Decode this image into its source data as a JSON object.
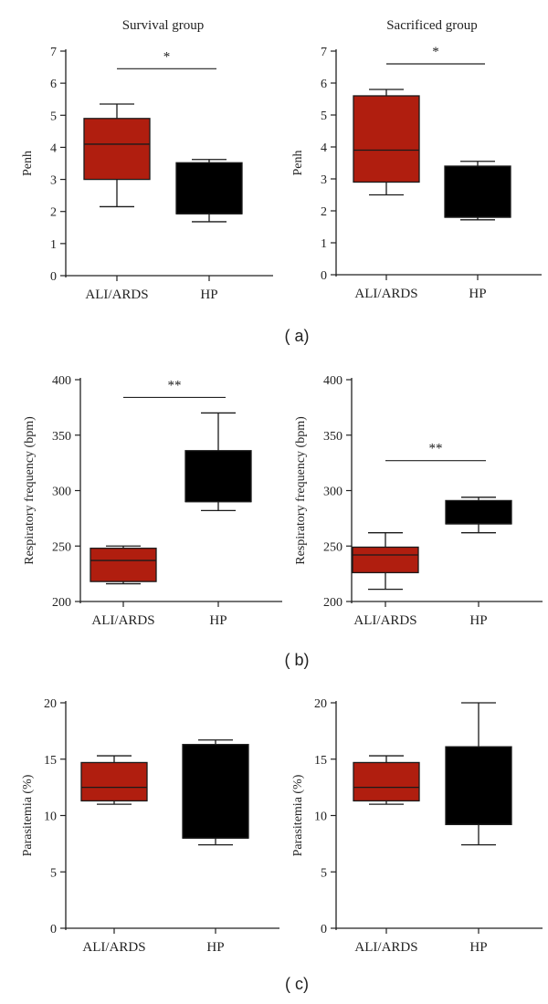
{
  "panel_labels": [
    "( a)",
    "( b)",
    "( c)"
  ],
  "chart_data": [
    {
      "type": "box",
      "title": "Survival group",
      "ylabel": "Penh",
      "ylim": [
        0,
        7
      ],
      "yticks": [
        "0",
        "1",
        "2",
        "3",
        "4",
        "5",
        "6",
        "7"
      ],
      "categories": [
        "ALI/ARDS",
        "HP"
      ],
      "boxes": [
        {
          "category": "ALI/ARDS",
          "min": 2.15,
          "q1": 3.0,
          "median": 4.1,
          "q3": 4.9,
          "max": 5.35,
          "color": "#b01e0f"
        },
        {
          "category": "HP",
          "min": 1.68,
          "q1": 1.93,
          "median": 1.93,
          "q3": 3.52,
          "max": 3.62,
          "color": "#000000"
        }
      ],
      "significance": {
        "label": "*",
        "y": 6.45
      }
    },
    {
      "type": "box",
      "title": "Sacrificed group",
      "ylabel": "Penh",
      "ylim": [
        0,
        7
      ],
      "yticks": [
        "0",
        "1",
        "2",
        "3",
        "4",
        "5",
        "6",
        "7"
      ],
      "categories": [
        "ALI/ARDS",
        "HP"
      ],
      "boxes": [
        {
          "category": "ALI/ARDS",
          "min": 2.5,
          "q1": 2.9,
          "median": 3.9,
          "q3": 5.6,
          "max": 5.8,
          "color": "#b01e0f"
        },
        {
          "category": "HP",
          "min": 1.72,
          "q1": 1.8,
          "median": 1.8,
          "q3": 3.4,
          "max": 3.55,
          "color": "#000000"
        }
      ],
      "significance": {
        "label": "*",
        "y": 6.6
      }
    },
    {
      "type": "box",
      "title": "",
      "ylabel": "Respiratory frequency (bpm)",
      "ylim": [
        200,
        400
      ],
      "yticks": [
        "200",
        "250",
        "300",
        "350",
        "400"
      ],
      "categories": [
        "ALI/ARDS",
        "HP"
      ],
      "boxes": [
        {
          "category": "ALI/ARDS",
          "min": 216,
          "q1": 218,
          "median": 237,
          "q3": 248,
          "max": 250,
          "color": "#b01e0f"
        },
        {
          "category": "HP",
          "min": 282,
          "q1": 290,
          "median": 290,
          "q3": 336,
          "max": 370,
          "color": "#000000"
        }
      ],
      "significance": {
        "label": "**",
        "y": 384
      }
    },
    {
      "type": "box",
      "title": "",
      "ylabel": "Respiratory frequency (bpm)",
      "ylim": [
        200,
        400
      ],
      "yticks": [
        "200",
        "250",
        "300",
        "350",
        "400"
      ],
      "categories": [
        "ALI/ARDS",
        "HP"
      ],
      "boxes": [
        {
          "category": "ALI/ARDS",
          "min": 211,
          "q1": 226,
          "median": 242,
          "q3": 249,
          "max": 262,
          "color": "#b01e0f"
        },
        {
          "category": "HP",
          "min": 262,
          "q1": 270,
          "median": 270,
          "q3": 291,
          "max": 294,
          "color": "#000000"
        }
      ],
      "significance": {
        "label": "**",
        "y": 327
      }
    },
    {
      "type": "box",
      "title": "",
      "ylabel": "Parasitemia (%)",
      "ylim": [
        0,
        20
      ],
      "yticks": [
        "0",
        "5",
        "10",
        "15",
        "20"
      ],
      "categories": [
        "ALI/ARDS",
        "HP"
      ],
      "boxes": [
        {
          "category": "ALI/ARDS",
          "min": 11.0,
          "q1": 11.3,
          "median": 12.5,
          "q3": 14.7,
          "max": 15.3,
          "color": "#b01e0f"
        },
        {
          "category": "HP",
          "min": 7.4,
          "q1": 8.0,
          "median": 8.0,
          "q3": 16.3,
          "max": 16.7,
          "color": "#000000"
        }
      ],
      "significance": null
    },
    {
      "type": "box",
      "title": "",
      "ylabel": "Parasitemia (%)",
      "ylim": [
        0,
        20
      ],
      "yticks": [
        "0",
        "5",
        "10",
        "15",
        "20"
      ],
      "categories": [
        "ALI/ARDS",
        "HP"
      ],
      "boxes": [
        {
          "category": "ALI/ARDS",
          "min": 11.0,
          "q1": 11.3,
          "median": 12.5,
          "q3": 14.7,
          "max": 15.3,
          "color": "#b01e0f"
        },
        {
          "category": "HP",
          "min": 7.4,
          "q1": 9.2,
          "median": 9.2,
          "q3": 16.1,
          "max": 20.0,
          "color": "#000000"
        }
      ],
      "significance": null
    }
  ]
}
